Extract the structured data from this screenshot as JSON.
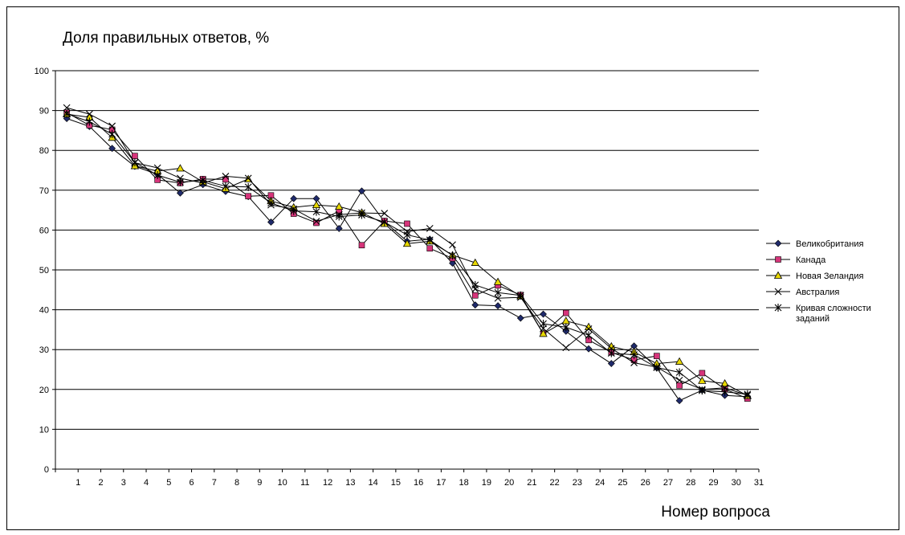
{
  "chart_data": {
    "type": "line",
    "title": "Доля правильных ответов, %",
    "xlabel": "Номер вопроса",
    "ylabel": "",
    "ylim": [
      0,
      100
    ],
    "yticks": [
      0,
      10,
      20,
      30,
      40,
      50,
      60,
      70,
      80,
      90,
      100
    ],
    "grid": true,
    "legend": "right",
    "categories": [
      "1",
      "2",
      "3",
      "4",
      "5",
      "6",
      "7",
      "8",
      "9",
      "10",
      "11",
      "12",
      "13",
      "14",
      "15",
      "16",
      "17",
      "18",
      "19",
      "20",
      "21",
      "22",
      "23",
      "24",
      "25",
      "26",
      "27",
      "28",
      "29",
      "30",
      "31"
    ],
    "series": [
      {
        "name": "Великобритания",
        "marker": "diamond",
        "color": "#1f2a6b",
        "values": [
          88.0,
          86.0,
          80.5,
          76.0,
          74.0,
          69.3,
          71.4,
          69.7,
          68.4,
          62.0,
          67.9,
          67.9,
          60.4,
          69.8,
          62.1,
          57.2,
          57.7,
          51.7,
          41.2,
          41.0,
          37.9,
          38.9,
          34.6,
          30.2,
          26.5,
          30.9,
          25.4,
          17.2,
          19.8,
          18.5,
          18.2
        ]
      },
      {
        "name": "Канада",
        "marker": "square",
        "color": "#d6347a",
        "values": [
          89.5,
          86.3,
          85.2,
          78.6,
          72.6,
          71.8,
          72.8,
          72.7,
          68.5,
          68.7,
          64.1,
          61.8,
          64.8,
          56.2,
          62.3,
          61.6,
          55.4,
          52.9,
          43.6,
          46.1,
          43.7,
          34.0,
          39.2,
          32.4,
          29.3,
          27.4,
          28.4,
          21.0,
          24.1,
          20.1,
          17.7
        ]
      },
      {
        "name": "Новая Зеландия",
        "marker": "triangle",
        "color": "#e8d800",
        "values": [
          89.1,
          88.3,
          83.2,
          76.1,
          74.8,
          75.5,
          72.1,
          70.4,
          72.8,
          67.3,
          65.7,
          66.3,
          65.9,
          64.4,
          61.6,
          56.6,
          57.2,
          53.7,
          51.8,
          47.0,
          43.4,
          34.0,
          37.2,
          35.7,
          30.8,
          29.4,
          26.5,
          27.0,
          22.2,
          21.5,
          18.4
        ]
      },
      {
        "name": "Австралия",
        "marker": "x",
        "color": "#000000",
        "values": [
          90.7,
          89.1,
          86.1,
          76.9,
          75.6,
          73.0,
          71.8,
          73.5,
          73.0,
          66.3,
          65.3,
          62.2,
          63.9,
          64.3,
          64.2,
          59.6,
          60.4,
          56.3,
          45.2,
          42.9,
          43.1,
          35.3,
          30.5,
          35.2,
          30.3,
          26.7,
          25.6,
          22.3,
          20.0,
          20.4,
          18.5
        ]
      },
      {
        "name": "Кривая сложности заданий",
        "marker": "star",
        "color": "#000000",
        "values": [
          89.2,
          87.2,
          84.1,
          77.0,
          73.8,
          72.0,
          72.5,
          71.0,
          70.8,
          66.8,
          64.8,
          64.6,
          63.4,
          63.8,
          62.0,
          58.8,
          57.5,
          53.6,
          46.2,
          44.3,
          43.6,
          36.5,
          35.6,
          33.6,
          29.1,
          28.7,
          25.5,
          24.3,
          19.7,
          19.4,
          18.8
        ]
      }
    ]
  }
}
